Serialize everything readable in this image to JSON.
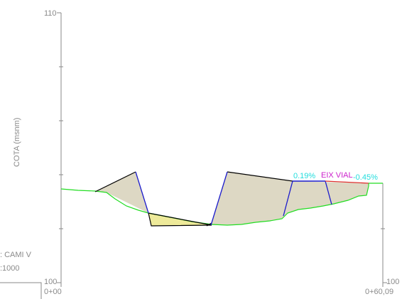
{
  "axis": {
    "y_label": "COTA (msnm)",
    "y_top": "110",
    "y_bottom": "100",
    "y_right_bottom": "100",
    "x_start": "0+00",
    "x_end": "0+60,09"
  },
  "annotations": {
    "grade_left": "0.19%",
    "axis_name": "EIX VIAL",
    "grade_right": "-0.45%"
  },
  "side_text": {
    "line1": ": CAMI V",
    "line2": ":1000"
  },
  "colors": {
    "terrain": "#22dd22",
    "cut_outline": "#000000",
    "slope": "#1a1acc",
    "fill_area": "#ddd8c4",
    "yellow_area": "#eeea9a",
    "grade_text": "#22dddd",
    "axis_name_text": "#cc22cc",
    "grade_line": "#e03030",
    "axis": "#888888"
  }
}
